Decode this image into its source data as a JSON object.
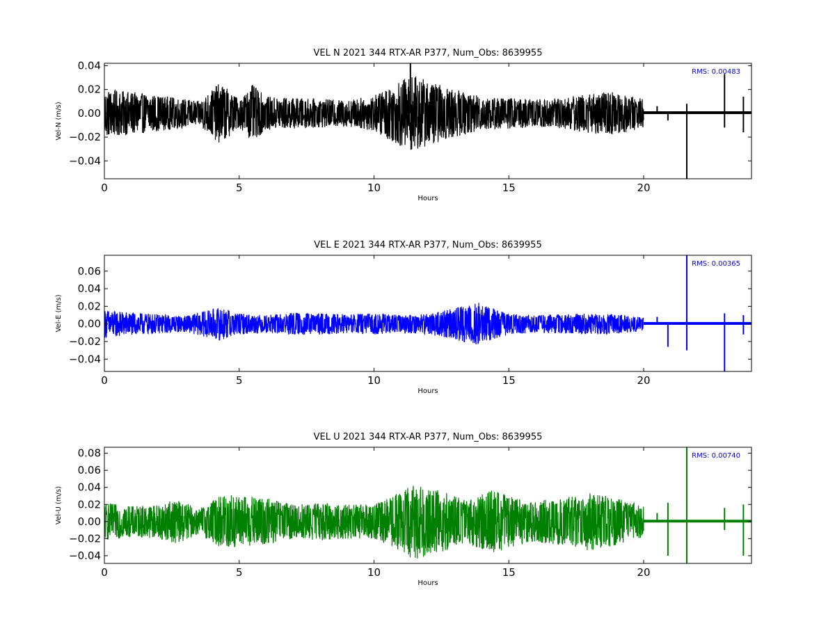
{
  "chart_data": [
    {
      "type": "line",
      "title": "VEL N 2021 344 RTX-AR  P377, Num_Obs: 8639955",
      "xlabel": "Hours",
      "ylabel": "Vel-N (m/s)",
      "xlim": [
        0,
        24
      ],
      "ylim": [
        -0.055,
        0.042
      ],
      "xticks": [
        0,
        5,
        10,
        15,
        20
      ],
      "xtick_labels": [
        "0",
        "5",
        "10",
        "15",
        "20"
      ],
      "yticks": [
        -0.04,
        -0.02,
        0.0,
        0.02,
        0.04
      ],
      "ytick_labels": [
        "−0.04",
        "−0.02",
        "0.00",
        "0.02",
        "0.04"
      ],
      "color": "#000000",
      "annotation": "RMS:  0.00483",
      "annotation_color": "#0000ff",
      "envelope_points": [
        [
          0,
          0.02
        ],
        [
          1,
          0.018
        ],
        [
          2,
          0.015
        ],
        [
          3,
          0.012
        ],
        [
          3.5,
          0.01
        ],
        [
          4.3,
          0.026
        ],
        [
          5,
          0.012
        ],
        [
          5.5,
          0.024
        ],
        [
          6,
          0.014
        ],
        [
          7,
          0.013
        ],
        [
          8,
          0.012
        ],
        [
          9,
          0.011
        ],
        [
          10,
          0.015
        ],
        [
          11,
          0.028
        ],
        [
          11.5,
          0.032
        ],
        [
          12,
          0.027
        ],
        [
          13,
          0.02
        ],
        [
          14,
          0.014
        ],
        [
          15,
          0.013
        ],
        [
          16,
          0.012
        ],
        [
          17,
          0.013
        ],
        [
          18,
          0.017
        ],
        [
          19,
          0.018
        ],
        [
          20,
          0.012
        ]
      ],
      "gap_start": 20,
      "spikes": [
        [
          11.35,
          0.042
        ],
        [
          21.6,
          -0.055
        ],
        [
          21.6,
          0.008
        ],
        [
          23.0,
          0.033
        ],
        [
          23.0,
          -0.012
        ],
        [
          20.5,
          0.006
        ],
        [
          20.9,
          -0.006
        ],
        [
          23.7,
          0.014
        ],
        [
          23.7,
          -0.016
        ]
      ]
    },
    {
      "type": "line",
      "title": "VEL E 2021 344 RTX-AR  P377, Num_Obs: 8639955",
      "xlabel": "Hours",
      "ylabel": "Vel-E (m/s)",
      "xlim": [
        0,
        24
      ],
      "ylim": [
        -0.054,
        0.078
      ],
      "xticks": [
        0,
        5,
        10,
        15,
        20
      ],
      "xtick_labels": [
        "0",
        "5",
        "10",
        "15",
        "20"
      ],
      "yticks": [
        -0.04,
        -0.02,
        0.0,
        0.02,
        0.04,
        0.06
      ],
      "ytick_labels": [
        "−0.04",
        "−0.02",
        "0.00",
        "0.02",
        "0.04",
        "0.06"
      ],
      "color": "#0000ff",
      "annotation": "RMS:  0.00365",
      "annotation_color": "#0000ff",
      "envelope_points": [
        [
          0,
          0.016
        ],
        [
          1,
          0.013
        ],
        [
          2,
          0.011
        ],
        [
          3,
          0.009
        ],
        [
          3.5,
          0.013
        ],
        [
          4.3,
          0.019
        ],
        [
          5,
          0.012
        ],
        [
          6,
          0.01
        ],
        [
          7,
          0.013
        ],
        [
          8,
          0.012
        ],
        [
          9,
          0.011
        ],
        [
          10,
          0.012
        ],
        [
          11,
          0.01
        ],
        [
          12,
          0.012
        ],
        [
          13,
          0.018
        ],
        [
          13.8,
          0.025
        ],
        [
          14.5,
          0.017
        ],
        [
          15,
          0.012
        ],
        [
          16,
          0.01
        ],
        [
          17,
          0.011
        ],
        [
          18,
          0.012
        ],
        [
          19,
          0.011
        ],
        [
          20,
          0.008
        ]
      ],
      "gap_start": 20,
      "spikes": [
        [
          21.6,
          0.078
        ],
        [
          21.6,
          -0.03
        ],
        [
          23.0,
          -0.054
        ],
        [
          23.0,
          0.012
        ],
        [
          20.9,
          -0.026
        ],
        [
          20.5,
          0.008
        ],
        [
          23.7,
          0.01
        ],
        [
          23.7,
          -0.012
        ]
      ]
    },
    {
      "type": "line",
      "title": "VEL U 2021 344 RTX-AR  P377, Num_Obs: 8639955",
      "xlabel": "Hours",
      "ylabel": "Vel-U (m/s)",
      "xlim": [
        0,
        24
      ],
      "ylim": [
        -0.049,
        0.087
      ],
      "xticks": [
        0,
        5,
        10,
        15,
        20
      ],
      "xtick_labels": [
        "0",
        "5",
        "10",
        "15",
        "20"
      ],
      "yticks": [
        -0.04,
        -0.02,
        0.0,
        0.02,
        0.04,
        0.06,
        0.08
      ],
      "ytick_labels": [
        "−0.04",
        "−0.02",
        "0.00",
        "0.02",
        "0.04",
        "0.06",
        "0.08"
      ],
      "color": "#008000",
      "annotation": "RMS:  0.00740",
      "annotation_color": "#0000ff",
      "envelope_points": [
        [
          0,
          0.022
        ],
        [
          1,
          0.018
        ],
        [
          2,
          0.02
        ],
        [
          2.7,
          0.026
        ],
        [
          3.5,
          0.015
        ],
        [
          4.5,
          0.034
        ],
        [
          5,
          0.03
        ],
        [
          6,
          0.028
        ],
        [
          7,
          0.02
        ],
        [
          8,
          0.022
        ],
        [
          9,
          0.02
        ],
        [
          10,
          0.02
        ],
        [
          11,
          0.035
        ],
        [
          11.5,
          0.045
        ],
        [
          12,
          0.04
        ],
        [
          12.5,
          0.036
        ],
        [
          13.3,
          0.026
        ],
        [
          14,
          0.032
        ],
        [
          14.5,
          0.038
        ],
        [
          15,
          0.03
        ],
        [
          16,
          0.024
        ],
        [
          17,
          0.028
        ],
        [
          18,
          0.034
        ],
        [
          19,
          0.028
        ],
        [
          20,
          0.018
        ]
      ],
      "gap_start": 20,
      "spikes": [
        [
          21.6,
          0.087
        ],
        [
          21.6,
          -0.049
        ],
        [
          20.9,
          -0.04
        ],
        [
          20.9,
          0.022
        ],
        [
          20.5,
          0.01
        ],
        [
          23.0,
          -0.01
        ],
        [
          23.0,
          0.016
        ],
        [
          23.7,
          0.02
        ],
        [
          23.7,
          -0.04
        ]
      ]
    }
  ]
}
